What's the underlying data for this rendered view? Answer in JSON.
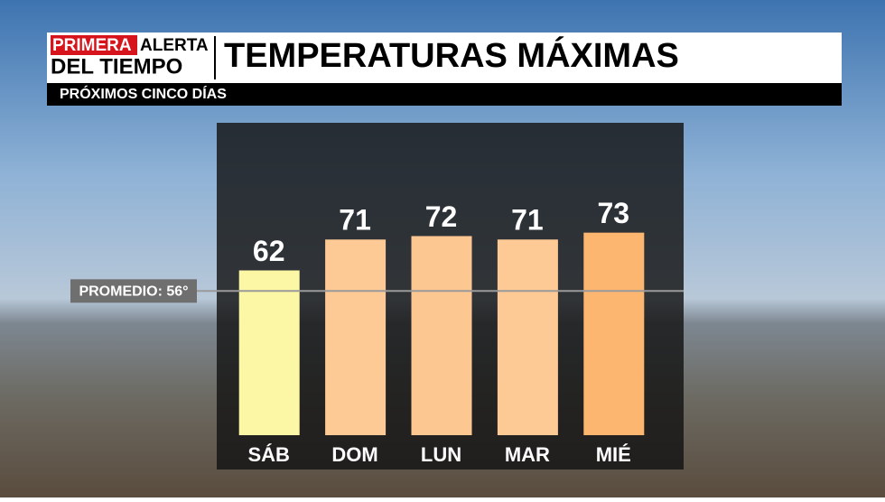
{
  "logo": [
    "PRIMERA",
    "ALERTA",
    "DEL TIEMPO"
  ],
  "chart_data": {
    "type": "bar",
    "title": "TEMPERATURAS MÁXIMAS",
    "subtitle": "PRÓXIMOS CINCO DÍAS",
    "categories": [
      "SÁB",
      "DOM",
      "LUN",
      "MAR",
      "MIÉ"
    ],
    "values": [
      62,
      71,
      72,
      71,
      73
    ],
    "colors": [
      "#fcf7a4",
      "#fdca95",
      "#fdc792",
      "#fdca95",
      "#fdb670"
    ],
    "ylim": [
      14,
      105
    ],
    "reference_line": {
      "value": 56,
      "label": "PROMEDIO: 56°"
    }
  }
}
